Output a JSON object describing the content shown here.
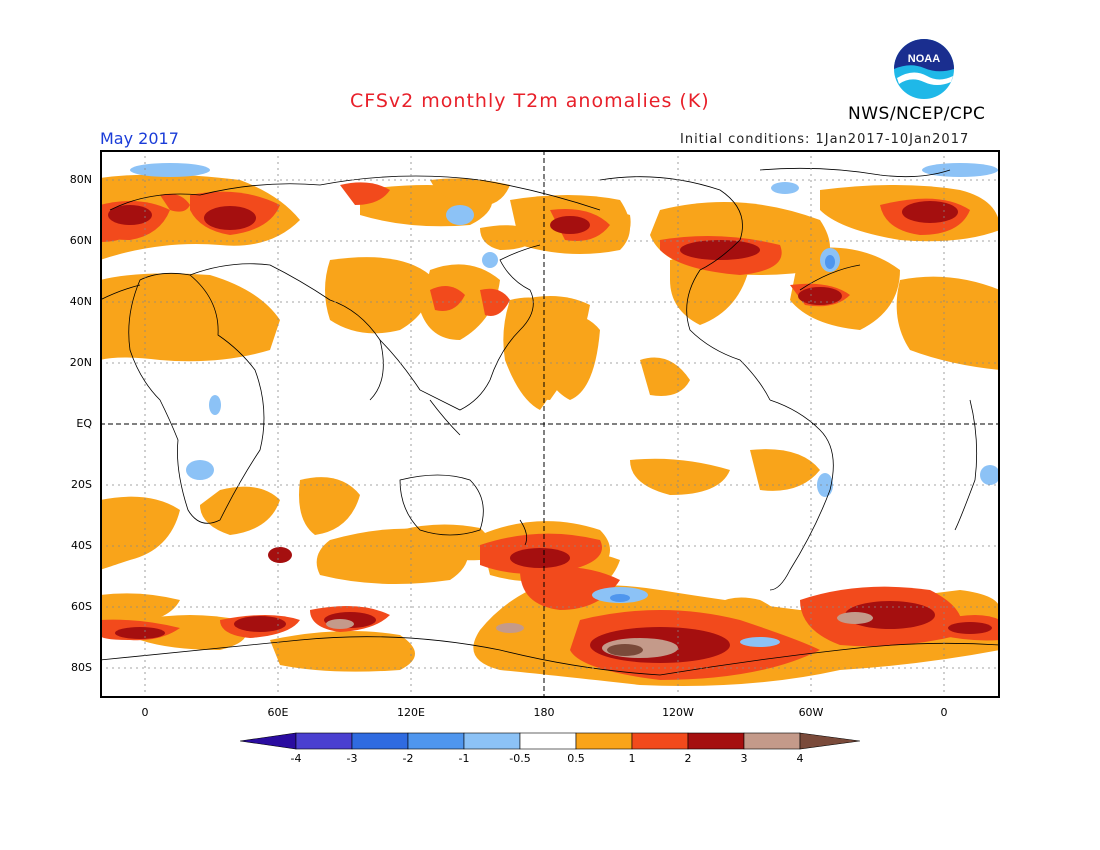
{
  "header": {
    "title": "CFSv2 monthly T2m anomalies (K)",
    "org": "NWS/NCEP/CPC",
    "month": "May 2017",
    "initial_conditions": "Initial conditions: 1Jan2017-10Jan2017",
    "logo_text": "NOAA"
  },
  "axes": {
    "lat_labels": [
      "80N",
      "60N",
      "40N",
      "20N",
      "EQ",
      "20S",
      "40S",
      "60S",
      "80S"
    ],
    "lon_labels": [
      "0",
      "60E",
      "120E",
      "180",
      "120W",
      "60W",
      "0"
    ]
  },
  "colorbar": {
    "labels": [
      "-4",
      "-3",
      "-2",
      "-1",
      "-0.5",
      "0.5",
      "1",
      "2",
      "3",
      "4"
    ],
    "colors": [
      "#2a0ca0",
      "#4a3fd0",
      "#2f6be0",
      "#4f96ee",
      "#8cc2f6",
      "#ffffff",
      "#f9a41a",
      "#f24a1c",
      "#a50f0f",
      "#c49a8a",
      "#7a4a3a"
    ]
  },
  "palette": {
    "orange": "#f9a41a",
    "red": "#f24a1c",
    "darkred": "#a50f0f",
    "tan": "#c49a8a",
    "brown": "#7a4a3a",
    "lightblue": "#8cc2f6",
    "blue": "#4f96ee"
  }
}
